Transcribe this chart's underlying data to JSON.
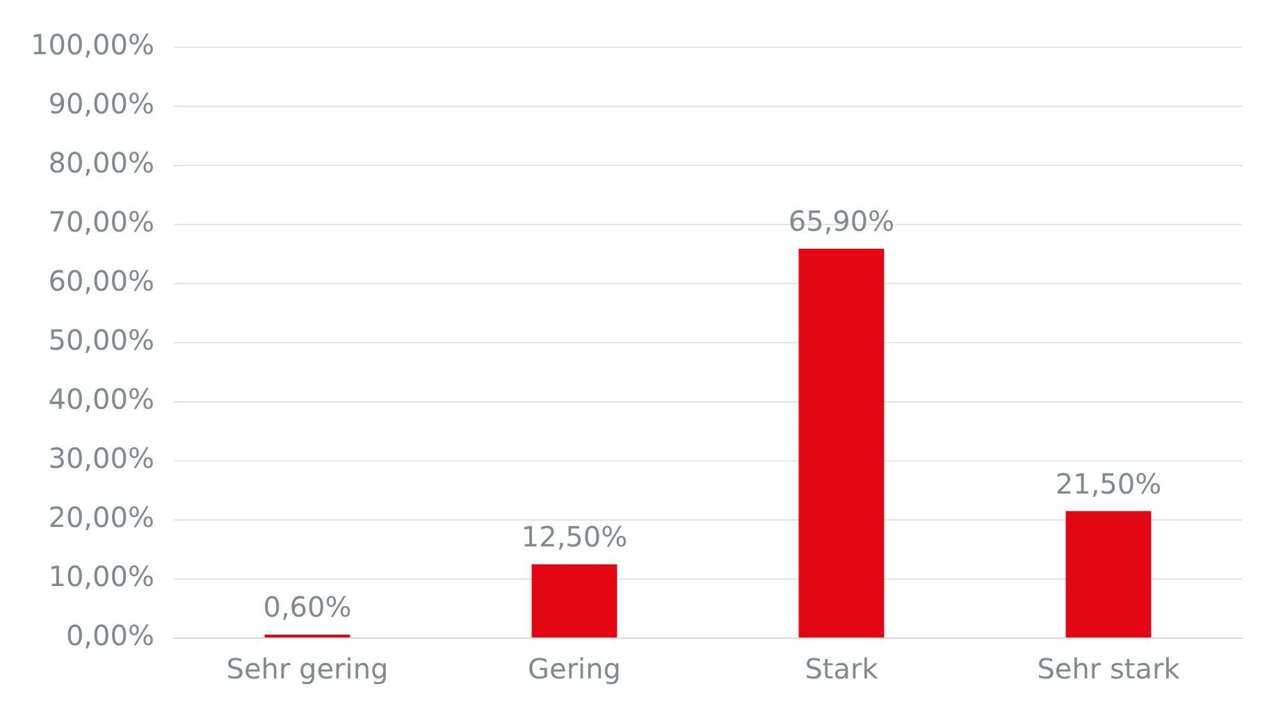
{
  "chart_data": {
    "type": "bar",
    "categories": [
      "Sehr gering",
      "Gering",
      "Stark",
      "Sehr stark"
    ],
    "values": [
      0.6,
      12.5,
      65.9,
      21.5
    ],
    "color": "#e30613",
    "value_labels": [
      "0,60%",
      "12,50%",
      "65,90%",
      "21,50%"
    ],
    "ylim": [
      0,
      100
    ],
    "yticks": [
      {
        "value": 0,
        "label": "0,00%"
      },
      {
        "value": 10,
        "label": "10,00%"
      },
      {
        "value": 20,
        "label": "20,00%"
      },
      {
        "value": 30,
        "label": "30,00%"
      },
      {
        "value": 40,
        "label": "40,00%"
      },
      {
        "value": 50,
        "label": "50,00%"
      },
      {
        "value": 60,
        "label": "60,00%"
      },
      {
        "value": 70,
        "label": "70,00%"
      },
      {
        "value": 80,
        "label": "80,00%"
      },
      {
        "value": 90,
        "label": "90,00%"
      },
      {
        "value": 100,
        "label": "100,00%"
      }
    ],
    "grid": "y"
  }
}
